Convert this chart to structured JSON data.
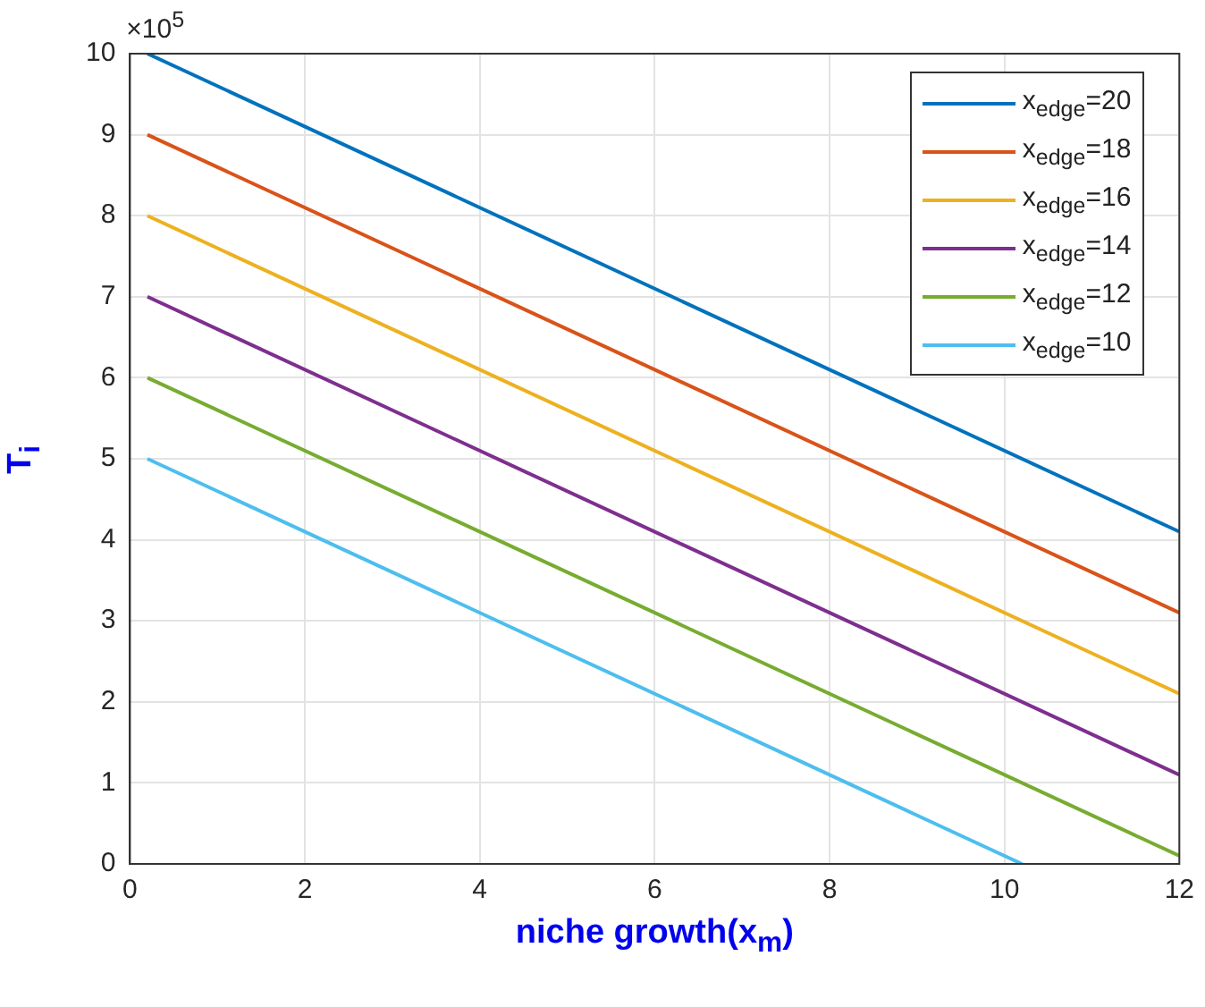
{
  "chart_data": {
    "type": "line",
    "xlabel": "niche growth(x$_{m}$)",
    "ylabel": "T$_{i}$",
    "annotations": [
      "×10$^{5}$"
    ],
    "xlim": [
      0,
      12
    ],
    "xticks": [
      0,
      2,
      4,
      6,
      8,
      10,
      12
    ],
    "ylim": [
      0,
      10
    ],
    "yticks": [
      0,
      1,
      2,
      3,
      4,
      5,
      6,
      7,
      8,
      9,
      10
    ],
    "grid": true,
    "legend": "top right",
    "marker": "none",
    "line_style": "solid",
    "series": [
      {
        "name": "x$_{edge}$=20",
        "color": "#0072bd",
        "x": [
          0.2,
          12
        ],
        "values": [
          10,
          4.1
        ]
      },
      {
        "name": "x$_{edge}$=18",
        "color": "#d95319",
        "x": [
          0.2,
          12
        ],
        "values": [
          9,
          3.1
        ]
      },
      {
        "name": "x$_{edge}$=16",
        "color": "#edb120",
        "x": [
          0.2,
          12
        ],
        "values": [
          8,
          2.1
        ]
      },
      {
        "name": "x$_{edge}$=14",
        "color": "#7e2f8e",
        "x": [
          0.2,
          12
        ],
        "values": [
          7,
          1.1
        ]
      },
      {
        "name": "x$_{edge}$=12",
        "color": "#77ac30",
        "x": [
          0.2,
          12
        ],
        "values": [
          6,
          0.1
        ]
      },
      {
        "name": "x$_{edge}$=10",
        "color": "#4dbeee",
        "x": [
          0.2,
          10.2
        ],
        "values": [
          5,
          0
        ]
      }
    ]
  }
}
